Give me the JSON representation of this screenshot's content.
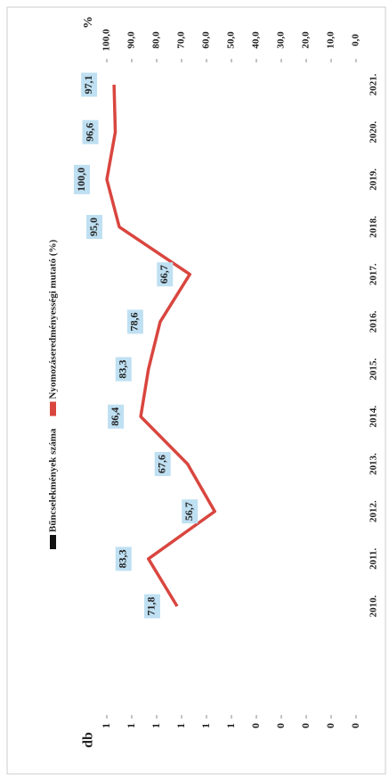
{
  "chart_data": {
    "type": "line",
    "categories": [
      "2010.",
      "2011.",
      "2012.",
      "2013.",
      "2014.",
      "2015.",
      "2016.",
      "2017.",
      "2018.",
      "2019.",
      "2020.",
      "2021."
    ],
    "ylabel": "db",
    "y2label": "%",
    "ylim": [
      0,
      1
    ],
    "yticks": [
      {
        "value": 0,
        "label": "0"
      },
      {
        "value": 0.1,
        "label": "0"
      },
      {
        "value": 0.2,
        "label": "0"
      },
      {
        "value": 0.3,
        "label": "0"
      },
      {
        "value": 0.4,
        "label": "0"
      },
      {
        "value": 0.5,
        "label": "1"
      },
      {
        "value": 0.6,
        "label": "1"
      },
      {
        "value": 0.7,
        "label": "1"
      },
      {
        "value": 0.8,
        "label": "1"
      },
      {
        "value": 0.9,
        "label": "1"
      },
      {
        "value": 1,
        "label": "1"
      }
    ],
    "y2lim": [
      0,
      100
    ],
    "y2ticks": [
      {
        "value": 0,
        "label": "0,0"
      },
      {
        "value": 10,
        "label": "10,0"
      },
      {
        "value": 20,
        "label": "20,0"
      },
      {
        "value": 30,
        "label": "30,0"
      },
      {
        "value": 40,
        "label": "40,0"
      },
      {
        "value": 50,
        "label": "50,0"
      },
      {
        "value": 60,
        "label": "60,0"
      },
      {
        "value": 70,
        "label": "70,0"
      },
      {
        "value": 80,
        "label": "80,0"
      },
      {
        "value": 90,
        "label": "90,0"
      },
      {
        "value": 100,
        "label": "100,0"
      }
    ],
    "series": [
      {
        "name": "Bűncselekmények száma",
        "color": "#111111",
        "values": [
          null,
          null,
          null,
          null,
          null,
          null,
          null,
          null,
          null,
          null,
          null,
          null
        ]
      },
      {
        "name": "Nyomozáseredményességi mutató (%)",
        "color": "#d9463f",
        "axis": "y2",
        "values": [
          71.8,
          83.3,
          56.7,
          67.6,
          86.4,
          83.3,
          78.6,
          66.7,
          95.0,
          100.0,
          96.6,
          97.1
        ],
        "value_labels": [
          "71,8",
          "83,3",
          "56,7",
          "67,6",
          "86,4",
          "83,3",
          "78,6",
          "66,7",
          "95,0",
          "100,0",
          "96,6",
          "97,1"
        ]
      }
    ]
  }
}
